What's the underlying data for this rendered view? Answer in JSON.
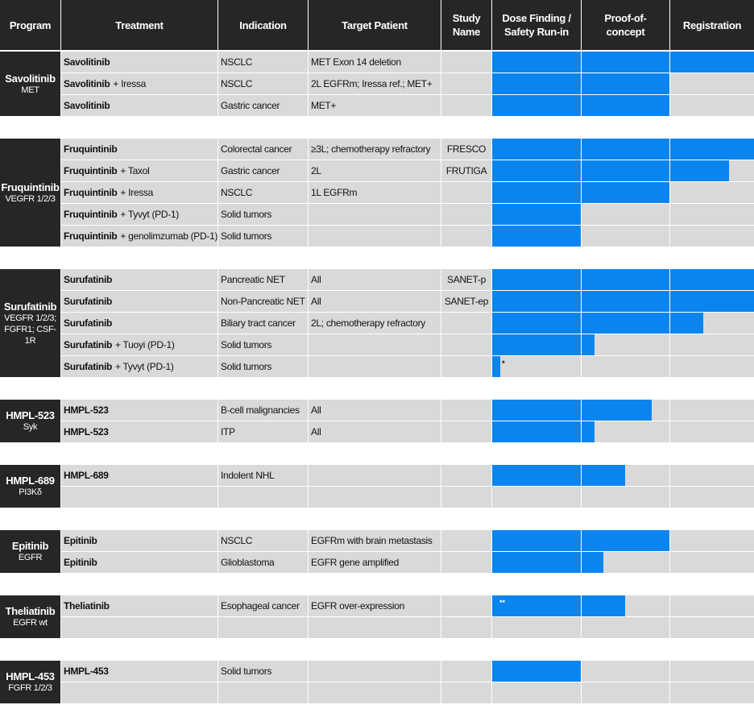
{
  "chart_data": {
    "type": "pipeline",
    "columns": [
      "Program",
      "Treatment",
      "Indication",
      "Target Patient",
      "Study\nName",
      "Dose Finding /\nSafety Run-in",
      "Proof-of-\nconcept",
      "Registration"
    ],
    "xlim": [
      0,
      3
    ],
    "color": "#0a84ef",
    "groups": [
      {
        "program": "Savolitinib",
        "target": "MET",
        "rows": [
          {
            "drug": "Savolitinib",
            "indication": "NSCLC",
            "patient": "MET Exon 14 deletion",
            "progress": 3
          },
          {
            "drug": "Savolitinib",
            "combo": "+ Iressa",
            "indication": "NSCLC",
            "patient": "2L EGFRm; Iressa ref.; MET+",
            "progress": 2
          },
          {
            "drug": "Savolitinib",
            "indication": "Gastric cancer",
            "patient": "MET+",
            "progress": 2
          }
        ]
      },
      {
        "program": "Fruquintinib",
        "target": "VEGFR 1/2/3",
        "rows": [
          {
            "drug": "Fruquintinib",
            "indication": "Colorectal cancer",
            "patient": "≥3L; chemotherapy refractory",
            "study": "FRESCO",
            "progress": 3
          },
          {
            "drug": "Fruquintinib",
            "combo": "+ Taxol",
            "indication": "Gastric cancer",
            "patient": "2L",
            "study": "FRUTIGA",
            "progress": 2.7
          },
          {
            "drug": "Fruquintinib",
            "combo": "+ Iressa",
            "indication": "NSCLC",
            "patient": "1L EGFRm",
            "progress": 2
          },
          {
            "drug": "Fruquintinib",
            "combo": "+ Tyvyt (PD-1)",
            "indication": "Solid tumors",
            "progress": 1
          },
          {
            "drug": "Fruquintinib",
            "combo": "+ genolimzumab (PD-1)",
            "indication": "Solid tumors",
            "progress": 1
          }
        ]
      },
      {
        "program": "Surufatinib",
        "target": "VEGFR 1/2/3; FGFR1; CSF-1R",
        "rows": [
          {
            "drug": "Surufatinib",
            "indication": "Pancreatic NET",
            "patient": "All",
            "study": "SANET-p",
            "progress": 3
          },
          {
            "drug": "Surufatinib",
            "indication": "Non-Pancreatic NET",
            "patient": "All",
            "study": "SANET-ep",
            "progress": 3
          },
          {
            "drug": "Surufatinib",
            "indication": "Biliary tract cancer",
            "patient": "2L; chemotherapy refractory",
            "progress": 2.4
          },
          {
            "drug": "Surufatinib",
            "combo": "+ Tuoyi (PD-1)",
            "indication": "Solid tumors",
            "progress": 1.15
          },
          {
            "drug": "Surufatinib",
            "combo": "+ Tyvyt (PD-1)",
            "indication": "Solid tumors",
            "progress": 0.1,
            "note": "*"
          }
        ]
      },
      {
        "program": "HMPL-523",
        "target": "Syk",
        "rows": [
          {
            "drug": "HMPL-523",
            "indication": "B-cell malignancies",
            "patient": "All",
            "progress": 1.8
          },
          {
            "drug": "HMPL-523",
            "indication": "ITP",
            "patient": "All",
            "progress": 1.15
          }
        ]
      },
      {
        "program": "HMPL-689",
        "target": "PI3Kδ",
        "rows": [
          {
            "drug": "HMPL-689",
            "indication": "Indolent NHL",
            "progress": 1.5
          },
          {
            "progress": null
          }
        ]
      },
      {
        "program": "Epitinib",
        "target": "EGFR",
        "rows": [
          {
            "drug": "Epitinib",
            "indication": "NSCLC",
            "patient": "EGFRm with brain metastasis",
            "progress": 2
          },
          {
            "drug": "Epitinib",
            "indication": "Glioblastoma",
            "patient": "EGFR gene amplified",
            "progress": 1.25
          }
        ]
      },
      {
        "program": "Theliatinib",
        "target": "EGFR wt",
        "rows": [
          {
            "drug": "Theliatinib",
            "indication": "Esophageal cancer",
            "patient": "EGFR over-expression",
            "progress": 1.5,
            "note": "**"
          },
          {
            "progress": null
          }
        ]
      },
      {
        "program": "HMPL-453",
        "target": "FGFR 1/2/3",
        "rows": [
          {
            "drug": "HMPL-453",
            "indication": "Solid tumors",
            "progress": 1
          },
          {
            "progress": null
          }
        ]
      }
    ]
  }
}
